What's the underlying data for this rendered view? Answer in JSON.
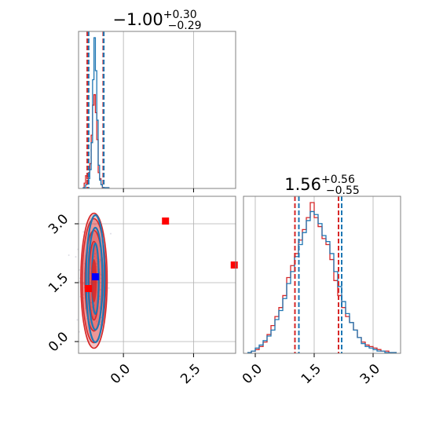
{
  "colors": {
    "series_a": "#d62728",
    "series_b": "#1f77b4",
    "truth_marker": "#ff0000",
    "reference_marker": "#0000ff",
    "frame": "#808080",
    "grid": "#b0b0b0"
  },
  "chart_data": [
    {
      "type": "histogram",
      "panel": "marginal-param-1",
      "title": {
        "value": "−1.00",
        "plus": "+0.30",
        "minus": "−0.29"
      },
      "xlim": [
        -1.6,
        4.0
      ],
      "xticks": [
        0.0,
        2.5
      ],
      "x_tick_labels_shown": false,
      "bins": [
        -1.45,
        -1.4,
        -1.35,
        -1.3,
        -1.25,
        -1.2,
        -1.15,
        -1.1,
        -1.05,
        -1.0,
        -0.95,
        -0.9,
        -0.85,
        -0.8,
        -0.75,
        -0.7,
        -0.65,
        -0.6,
        -0.55,
        -0.5
      ],
      "series": [
        {
          "color": "#d62728",
          "values": [
            0.0,
            0.03,
            0.08,
            0.06,
            0.1,
            0.16,
            0.35,
            0.55,
            0.62,
            0.5,
            0.32,
            0.1,
            0.06,
            0.02,
            0.0,
            0.0,
            0.0,
            0.0,
            0.0
          ]
        },
        {
          "color": "#1f77b4",
          "values": [
            0.0,
            0.0,
            0.02,
            0.03,
            0.06,
            0.12,
            0.3,
            0.72,
            1.0,
            0.78,
            0.45,
            0.15,
            0.05,
            0.02,
            0.0,
            0.0,
            0.0,
            0.0,
            0.0
          ]
        }
      ],
      "quantile_lines": [
        {
          "color": "#d62728",
          "values": [
            -1.29,
            -0.72
          ]
        },
        {
          "color": "#1f77b4",
          "values": [
            -1.24,
            -0.7
          ]
        }
      ]
    },
    {
      "type": "scatter",
      "panel": "joint-param-1-param-2",
      "xlim": [
        -1.6,
        4.0
      ],
      "ylim": [
        -0.3,
        3.7
      ],
      "xticks": [
        0.0,
        2.5
      ],
      "yticks": [
        0.0,
        1.5,
        3.0
      ],
      "xtick_labels": [
        "0.0",
        "2.5"
      ],
      "ytick_labels": [
        "0.0",
        "1.5",
        "3.0"
      ],
      "contours": [
        {
          "color": "#d62728",
          "filled": true,
          "cx": -1.05,
          "cy": 1.55,
          "levels": [
            [
              0.18,
              1.0
            ],
            [
              0.32,
              1.28
            ],
            [
              0.42,
              1.58
            ],
            [
              0.47,
              1.72
            ]
          ]
        },
        {
          "color": "#1f77b4",
          "filled": false,
          "cx": -1.0,
          "cy": 1.6,
          "levels": [
            [
              0.12,
              0.9
            ],
            [
              0.25,
              1.3
            ],
            [
              0.33,
              1.62
            ]
          ]
        }
      ],
      "markers": [
        {
          "color": "#ff0000",
          "x": 1.5,
          "y": 3.07
        },
        {
          "color": "#ff0000",
          "x": 3.95,
          "y": 1.95
        },
        {
          "color": "#ff0000",
          "x": -1.25,
          "y": 1.35
        },
        {
          "color": "#0000ff",
          "x": -1.0,
          "y": 1.65
        }
      ]
    },
    {
      "type": "histogram",
      "panel": "marginal-param-2",
      "title": {
        "value": "1.56",
        "plus": "+0.56",
        "minus": "−0.55"
      },
      "xlim": [
        -0.3,
        3.7
      ],
      "xticks": [
        0.0,
        1.5,
        3.0
      ],
      "xtick_labels": [
        "0.0",
        "1.5",
        "3.0"
      ],
      "bins": [
        -0.2,
        -0.1,
        0.0,
        0.1,
        0.2,
        0.3,
        0.4,
        0.5,
        0.6,
        0.7,
        0.8,
        0.9,
        1.0,
        1.1,
        1.2,
        1.3,
        1.4,
        1.5,
        1.6,
        1.7,
        1.8,
        1.9,
        2.0,
        2.1,
        2.2,
        2.3,
        2.4,
        2.5,
        2.6,
        2.7,
        2.8,
        2.9,
        3.0,
        3.1,
        3.2,
        3.3,
        3.4,
        3.5,
        3.6
      ],
      "series": [
        {
          "color": "#d62728",
          "values": [
            0.0,
            0.01,
            0.02,
            0.04,
            0.07,
            0.12,
            0.18,
            0.24,
            0.3,
            0.38,
            0.5,
            0.58,
            0.66,
            0.75,
            0.82,
            0.9,
            1.0,
            0.9,
            0.84,
            0.76,
            0.72,
            0.62,
            0.48,
            0.38,
            0.3,
            0.24,
            0.2,
            0.15,
            0.1,
            0.07,
            0.05,
            0.04,
            0.03,
            0.02,
            0.01,
            0.01,
            0.0,
            0.0
          ]
        },
        {
          "color": "#1f77b4",
          "values": [
            0.0,
            0.01,
            0.03,
            0.05,
            0.08,
            0.11,
            0.15,
            0.22,
            0.28,
            0.36,
            0.46,
            0.54,
            0.64,
            0.72,
            0.8,
            0.88,
            0.94,
            0.92,
            0.86,
            0.78,
            0.74,
            0.66,
            0.54,
            0.44,
            0.34,
            0.26,
            0.2,
            0.15,
            0.1,
            0.06,
            0.04,
            0.03,
            0.02,
            0.01,
            0.01,
            0.0,
            0.0,
            0.0
          ]
        }
      ],
      "quantile_lines": [
        {
          "color": "#d62728",
          "values": [
            1.01,
            2.12
          ]
        },
        {
          "color": "#1f77b4",
          "values": [
            1.11,
            2.2
          ]
        }
      ]
    }
  ]
}
